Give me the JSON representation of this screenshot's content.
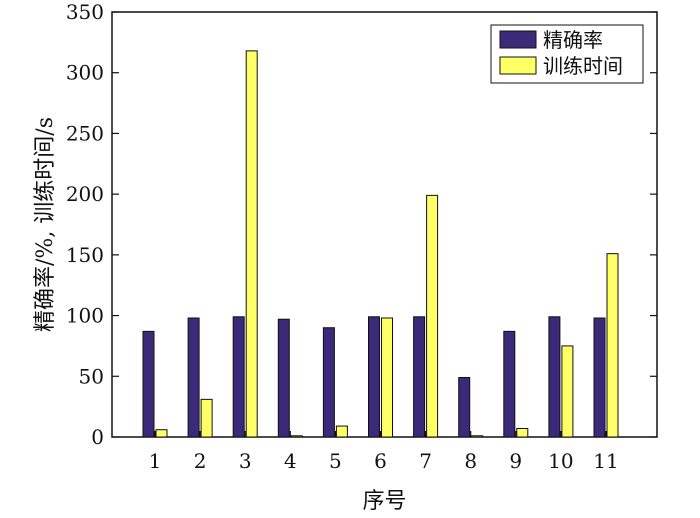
{
  "chart_data": {
    "type": "bar",
    "categories": [
      "1",
      "2",
      "3",
      "4",
      "5",
      "6",
      "7",
      "8",
      "9",
      "10",
      "11"
    ],
    "series": [
      {
        "name": "精确率",
        "color": "#3b2a7a",
        "values": [
          87,
          98,
          99,
          97,
          90,
          99,
          99,
          49,
          87,
          99,
          98
        ]
      },
      {
        "name": "训练时间",
        "color": "#ffff66",
        "values": [
          6,
          31,
          318,
          1,
          9,
          98,
          199,
          1,
          7,
          75,
          151
        ]
      }
    ],
    "title": "",
    "xlabel": "序号",
    "ylabel": "精确率/%, 训练时间/s",
    "ylim": [
      0,
      350
    ],
    "yticks": [
      "0",
      "50",
      "100",
      "150",
      "200",
      "250",
      "300",
      "350"
    ],
    "grid": false,
    "legend": "top-right"
  }
}
